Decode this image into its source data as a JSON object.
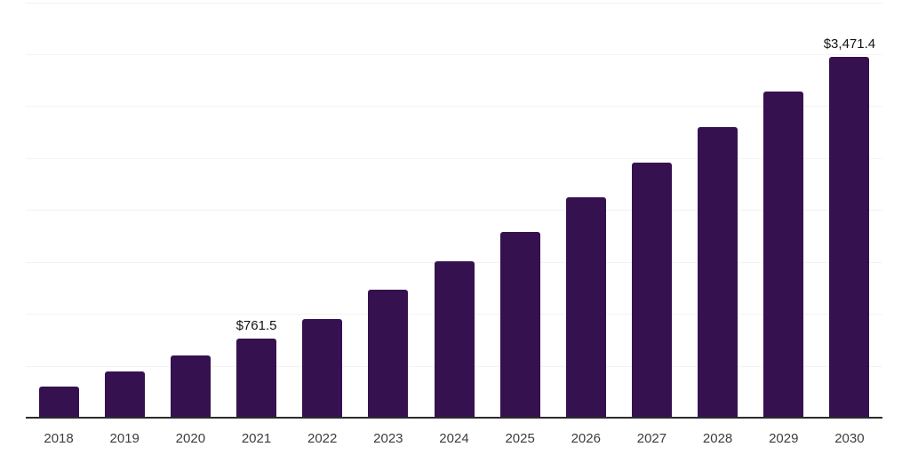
{
  "chart_data": {
    "type": "bar",
    "title": "",
    "xlabel": "",
    "ylabel": "",
    "categories": [
      "2018",
      "2019",
      "2020",
      "2021",
      "2022",
      "2023",
      "2024",
      "2025",
      "2026",
      "2027",
      "2028",
      "2029",
      "2030"
    ],
    "values": [
      300,
      442,
      603,
      761.5,
      947,
      1228,
      1505,
      1789,
      2120,
      2459,
      2796,
      3138,
      3471.4
    ],
    "labels": [
      "",
      "",
      "",
      "$761.5",
      "",
      "",
      "",
      "",
      "",
      "",
      "",
      "",
      "$3,471.4"
    ],
    "labeled_values": {
      "2021": "$761.5",
      "2030": "$3,471.4"
    },
    "ylim": [
      0,
      4000
    ],
    "gridline_step": 500,
    "grid": true,
    "legend": "none",
    "value_axis_ticks_visible": false
  },
  "colors": {
    "bar": "#361150",
    "gridline": "#f3f3f3",
    "axis_line": "#2b2b2b",
    "tick_label": "#3d3d3d",
    "data_label": "#121212",
    "background": "#ffffff"
  }
}
